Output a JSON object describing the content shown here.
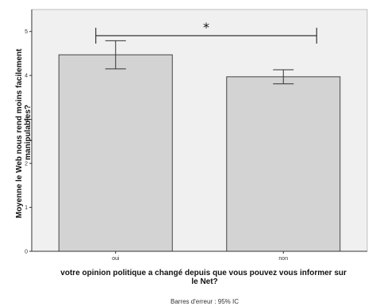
{
  "chart_data": {
    "type": "bar",
    "categories": [
      "oui",
      "non"
    ],
    "values": [
      4.47,
      3.97
    ],
    "error_bars": [
      {
        "low": 4.15,
        "high": 4.79
      },
      {
        "low": 3.81,
        "high": 4.13
      }
    ],
    "ylabel": "Moyenne le Web nous rend moins facilement manipulables?",
    "ylabel_lines": [
      "Moyenne le Web nous rend moins facilement",
      "manipulables?"
    ],
    "xlabel": "votre opinion politique a changé depuis que vous pouvez vous informer sur le Net?",
    "xlabel_lines": [
      "votre opinion politique a changé depuis que vous pouvez vous informer sur",
      "le Net?"
    ],
    "ylim": [
      0,
      5.5
    ],
    "yticks": [
      "0",
      "1",
      "2",
      "3",
      "4",
      "5"
    ],
    "significance_marker": "*",
    "footnote": "Barres d'erreur : 95% IC",
    "colors": {
      "plot_bg": "#f0f0f0",
      "bar_fill": "#d3d3d3",
      "bar_stroke": "#444444"
    },
    "grid": false
  }
}
